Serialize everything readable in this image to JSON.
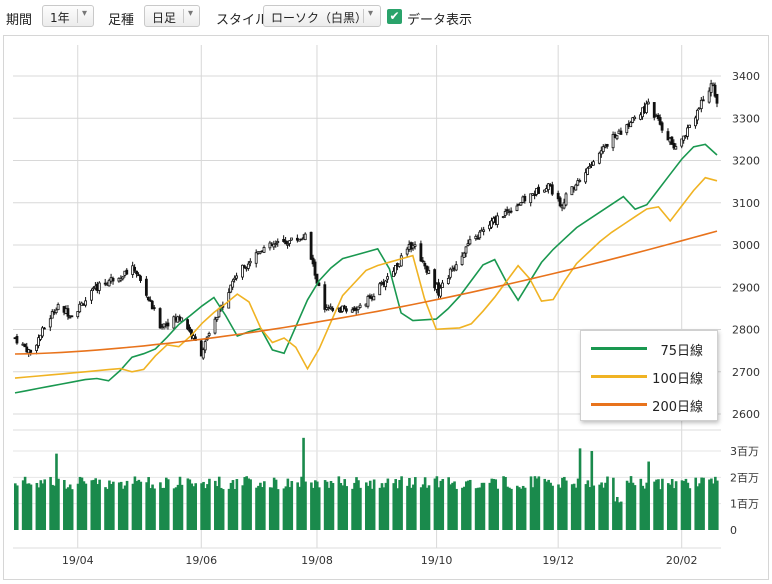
{
  "toolbar": {
    "period_label": "期間",
    "period_value": "1年",
    "interval_label": "足種",
    "interval_value": "日足",
    "style_label": "スタイル",
    "style_value": "ローソク（白黒）",
    "data_display_label": "データ表示",
    "data_display_checked": true
  },
  "colors": {
    "ma75": "#1a9850",
    "ma100": "#f0b323",
    "ma200": "#e8731c",
    "volume": "#1a8a4c",
    "grid": "#d8d8d8"
  },
  "chart_data": [
    {
      "type": "candlestick",
      "x_tick_labels": [
        "19/04",
        "19/06",
        "19/08",
        "19/10",
        "19/12",
        "20/02"
      ],
      "y_tick_labels": [
        "3400",
        "3300",
        "3200",
        "3100",
        "3000",
        "2900",
        "2800",
        "2700",
        "2600"
      ],
      "ylim": [
        2600,
        3400
      ],
      "grid": true,
      "price_keypoints": [
        {
          "date": "2019-02-28",
          "close": 2780
        },
        {
          "date": "2019-03-08",
          "close": 2745
        },
        {
          "date": "2019-03-21",
          "close": 2855
        },
        {
          "date": "2019-03-29",
          "close": 2835
        },
        {
          "date": "2019-04-12",
          "close": 2905
        },
        {
          "date": "2019-04-30",
          "close": 2945
        },
        {
          "date": "2019-05-13",
          "close": 2810
        },
        {
          "date": "2019-05-24",
          "close": 2830
        },
        {
          "date": "2019-06-03",
          "close": 2745
        },
        {
          "date": "2019-06-20",
          "close": 2925
        },
        {
          "date": "2019-07-03",
          "close": 2990
        },
        {
          "date": "2019-07-26",
          "close": 3020
        },
        {
          "date": "2019-08-05",
          "close": 2845
        },
        {
          "date": "2019-08-23",
          "close": 2850
        },
        {
          "date": "2019-09-03",
          "close": 2905
        },
        {
          "date": "2019-09-19",
          "close": 3005
        },
        {
          "date": "2019-10-02",
          "close": 2890
        },
        {
          "date": "2019-10-16",
          "close": 2995
        },
        {
          "date": "2019-11-01",
          "close": 3065
        },
        {
          "date": "2019-11-27",
          "close": 3145
        },
        {
          "date": "2019-12-03",
          "close": 3095
        },
        {
          "date": "2019-12-27",
          "close": 3240
        },
        {
          "date": "2020-01-17",
          "close": 3330
        },
        {
          "date": "2020-01-31",
          "close": 3225
        },
        {
          "date": "2020-02-19",
          "close": 3385
        },
        {
          "date": "2020-02-21",
          "close": 3335
        }
      ],
      "series": [
        {
          "name": "75日線",
          "values_start": 2650,
          "values_end": 3213
        },
        {
          "name": "100日線",
          "values_start": 2685,
          "values_end": 3152
        },
        {
          "name": "200日線",
          "values_start": 2742,
          "values_end": 3033
        }
      ],
      "legend_position": "bottom-right",
      "legend": [
        "75日線",
        "100日線",
        "200日線"
      ]
    },
    {
      "type": "bar",
      "name": "volume",
      "y_tick_labels": [
        "3百万",
        "2百万",
        "1百万",
        "0"
      ],
      "ylim": [
        0,
        3
      ],
      "typical_value_millions": 1.8,
      "peak_values_millions": [
        3.5,
        2.6,
        2.9,
        3.0,
        3.1
      ]
    }
  ]
}
